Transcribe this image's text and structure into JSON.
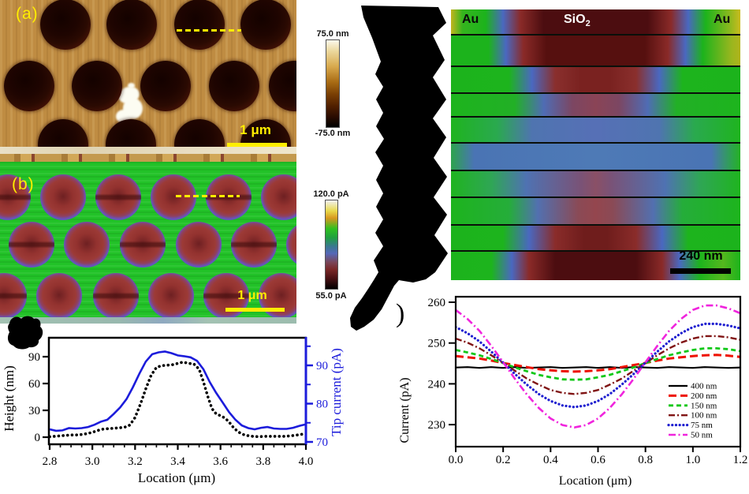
{
  "labels": {
    "panel_a": "(a)",
    "panel_b": "(b)",
    "scalebar_a": "1 μm",
    "scalebar_b": "1 μm",
    "colorbar_a_top": "75.0 nm",
    "colorbar_a_bottom": "-75.0 nm",
    "colorbar_b_top": "120.0 pA",
    "colorbar_b_bottom": "55.0 pA",
    "map_au_left": "Au",
    "map_sio2": "SiO",
    "map_sio2_sub": "2",
    "map_au_right": "Au",
    "map_scalebar": "240 nm",
    "panel_d_paren": ")"
  },
  "chart_data": [
    {
      "id": "height_current_profile",
      "type": "line",
      "xlabel": "Location (μm)",
      "ylabel_left": "Height (nm)",
      "ylabel_right": "Tip current (pA)",
      "xlim": [
        2.8,
        4.0
      ],
      "xticks": [
        2.8,
        3.0,
        3.2,
        3.4,
        3.6,
        3.8,
        4.0
      ],
      "x_minor_step": 0.05,
      "yticks_left": [
        0,
        30,
        60,
        90
      ],
      "ylim_left": [
        -8,
        111
      ],
      "yticks_right": [
        70,
        80,
        90
      ],
      "yticks_right_minor": [
        75,
        85,
        95
      ],
      "ylim_right": [
        69.3,
        97.8
      ],
      "grid": false,
      "series": [
        {
          "name": "height",
          "axis": "left",
          "style": "dot",
          "color": "#000000",
          "x": [
            2.8,
            2.825,
            2.85,
            2.875,
            2.9,
            2.925,
            2.95,
            2.975,
            3.0,
            3.025,
            3.05,
            3.075,
            3.1,
            3.125,
            3.15,
            3.175,
            3.2,
            3.225,
            3.25,
            3.275,
            3.3,
            3.325,
            3.35,
            3.375,
            3.4,
            3.425,
            3.45,
            3.475,
            3.5,
            3.52,
            3.54,
            3.56,
            3.58,
            3.6,
            3.62,
            3.64,
            3.66,
            3.68,
            3.7,
            3.72,
            3.75,
            3.78,
            3.81,
            3.84,
            3.87,
            3.9,
            3.93,
            3.96,
            4.0
          ],
          "values": [
            0.5,
            1,
            1.5,
            2,
            2.5,
            2.5,
            3,
            4,
            5.5,
            7.5,
            9,
            9.5,
            10,
            10.5,
            11,
            13.5,
            22,
            37,
            54,
            69,
            78,
            80,
            80.5,
            81,
            82.5,
            84,
            82.5,
            82,
            76,
            62,
            46,
            32,
            26,
            24,
            21.5,
            17,
            11,
            6.5,
            3.5,
            2,
            1,
            0.5,
            1,
            1,
            1,
            1,
            1.5,
            2.5,
            4
          ]
        },
        {
          "name": "tip_current",
          "axis": "right",
          "style": "solid",
          "color": "#1c1cdb",
          "x": [
            2.8,
            2.83,
            2.86,
            2.89,
            2.92,
            2.95,
            2.98,
            3.01,
            3.04,
            3.07,
            3.1,
            3.13,
            3.16,
            3.19,
            3.22,
            3.25,
            3.28,
            3.31,
            3.34,
            3.37,
            3.4,
            3.43,
            3.46,
            3.49,
            3.52,
            3.55,
            3.58,
            3.61,
            3.64,
            3.67,
            3.7,
            3.73,
            3.76,
            3.79,
            3.82,
            3.85,
            3.88,
            3.91,
            3.94,
            3.97,
            4.0
          ],
          "values": [
            73.3,
            72.9,
            73.0,
            73.6,
            73.5,
            73.6,
            73.9,
            74.5,
            75.3,
            75.8,
            77.3,
            79.0,
            81.2,
            84.3,
            87.8,
            91.0,
            92.9,
            93.4,
            93.6,
            93.2,
            92.6,
            92.4,
            92.1,
            91.2,
            89.0,
            85.6,
            82.8,
            80.3,
            77.8,
            75.8,
            74.3,
            73.6,
            73.3,
            73.7,
            73.9,
            73.5,
            73.4,
            73.4,
            73.7,
            74.2,
            74.6
          ]
        }
      ]
    },
    {
      "id": "current_vs_location_linewidths",
      "type": "line",
      "xlabel": "Location (μm)",
      "ylabel": "Current (pA)",
      "xlim": [
        0.0,
        1.2
      ],
      "xticks": [
        0.0,
        0.2,
        0.4,
        0.6,
        0.8,
        1.0,
        1.2
      ],
      "yticks": [
        230,
        240,
        250,
        260
      ],
      "ylim": [
        224.5,
        261.4
      ],
      "grid": false,
      "legend_position": "lower right",
      "x": [
        0,
        0.05,
        0.1,
        0.15,
        0.2,
        0.25,
        0.3,
        0.35,
        0.4,
        0.45,
        0.5,
        0.55,
        0.6,
        0.65,
        0.7,
        0.75,
        0.8,
        0.85,
        0.9,
        0.95,
        1.0,
        1.05,
        1.1,
        1.15,
        1.2
      ],
      "series": [
        {
          "name": "400 nm",
          "style": "solid",
          "color": "#000000",
          "values": [
            244.0,
            244.1,
            243.9,
            244.1,
            243.9,
            244.1,
            243.9,
            244.0,
            244.1,
            243.9,
            244.0,
            244.1,
            243.9,
            244.1,
            243.9,
            244.1,
            244.0,
            243.9,
            244.1,
            244.0,
            243.9,
            244.1,
            244.0,
            243.9,
            244.0
          ]
        },
        {
          "name": "200 nm",
          "style": "longdash",
          "color": "#ee1100",
          "values": [
            246.8,
            246.5,
            246.2,
            245.7,
            245.1,
            244.6,
            244.1,
            243.6,
            243.3,
            243.1,
            243.0,
            243.1,
            243.3,
            243.6,
            244.1,
            244.6,
            245.1,
            245.7,
            246.2,
            246.5,
            246.8,
            247.0,
            247.1,
            246.9,
            246.6
          ]
        },
        {
          "name": "150 nm",
          "style": "dash",
          "color": "#10c818",
          "values": [
            248.3,
            247.7,
            247.0,
            246.1,
            245.1,
            244.0,
            243.1,
            242.2,
            241.6,
            241.1,
            241.0,
            241.1,
            241.6,
            242.2,
            243.1,
            244.0,
            245.1,
            246.1,
            247.0,
            247.7,
            248.3,
            248.7,
            248.7,
            248.5,
            248.0
          ]
        },
        {
          "name": "100 nm",
          "style": "dashdot",
          "color": "#801414",
          "values": [
            251.1,
            250.1,
            248.7,
            247.0,
            245.1,
            243.2,
            241.3,
            239.8,
            238.5,
            237.8,
            237.5,
            237.8,
            238.5,
            239.8,
            241.3,
            243.2,
            245.1,
            247.0,
            248.7,
            250.1,
            251.1,
            251.7,
            251.7,
            251.4,
            250.8
          ]
        },
        {
          "name": "75 nm",
          "style": "dot",
          "color": "#1f1fd0",
          "values": [
            253.9,
            252.4,
            250.4,
            247.9,
            245.2,
            242.4,
            239.8,
            237.5,
            235.8,
            234.7,
            234.3,
            234.7,
            235.8,
            237.5,
            239.8,
            242.4,
            245.2,
            247.9,
            250.4,
            252.4,
            253.9,
            254.7,
            254.7,
            254.3,
            253.6
          ]
        },
        {
          "name": "50 nm",
          "style": "dashdotlong",
          "color": "#f024dd",
          "values": [
            258.1,
            255.9,
            253.0,
            249.3,
            245.3,
            241.2,
            237.4,
            234.1,
            231.5,
            229.9,
            229.3,
            229.9,
            231.5,
            234.1,
            237.4,
            241.2,
            245.3,
            249.3,
            253.0,
            255.9,
            258.1,
            259.2,
            259.2,
            258.5,
            257.3
          ]
        }
      ]
    }
  ]
}
